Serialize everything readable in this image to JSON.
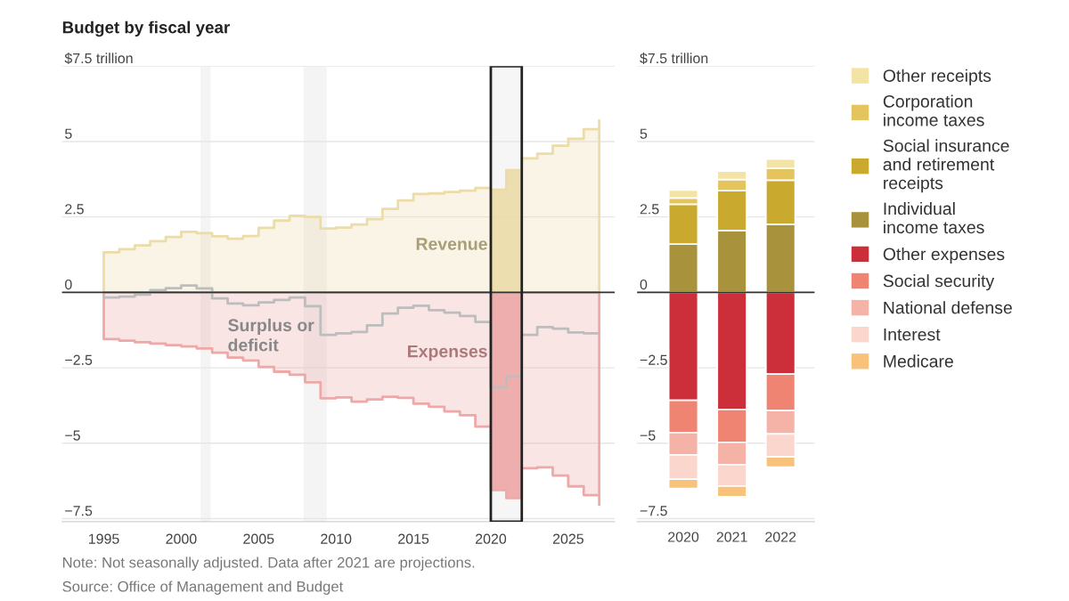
{
  "chart_data": [
    {
      "type": "line",
      "title": "Budget by fiscal year",
      "x": [
        1995,
        1996,
        1997,
        1998,
        1999,
        2000,
        2001,
        2002,
        2003,
        2004,
        2005,
        2006,
        2007,
        2008,
        2009,
        2010,
        2011,
        2012,
        2013,
        2014,
        2015,
        2016,
        2017,
        2018,
        2019,
        2020,
        2021,
        2022,
        2023,
        2024,
        2025,
        2026,
        2027
      ],
      "xlim": [
        1992.3,
        2028
      ],
      "xticks": [
        1995,
        2000,
        2005,
        2010,
        2015,
        2020,
        2025
      ],
      "ylim": [
        -7.6,
        7.5
      ],
      "yticks": [
        {
          "value": 7.5,
          "label": "$7.5 trillion"
        },
        5,
        2.5,
        0,
        {
          "value": -2.5,
          "label": "−2.5"
        },
        {
          "value": -5,
          "label": "−5"
        },
        {
          "value": -7.5,
          "label": "−7.5"
        }
      ],
      "grid": "y",
      "series": [
        {
          "name": "Revenue",
          "type": "area",
          "color": "#ebdca8",
          "values": [
            1.33,
            1.43,
            1.56,
            1.7,
            1.84,
            2.01,
            1.96,
            1.86,
            1.78,
            1.87,
            2.14,
            2.38,
            2.54,
            2.5,
            2.12,
            2.15,
            2.25,
            2.43,
            2.77,
            3.05,
            3.26,
            3.28,
            3.33,
            3.37,
            3.46,
            3.4,
            4.05,
            4.44,
            4.6,
            4.86,
            5.09,
            5.41,
            5.7
          ]
        },
        {
          "name": "Expenses",
          "type": "area",
          "color": "#eea8a8",
          "values": [
            -1.55,
            -1.6,
            -1.65,
            -1.7,
            -1.75,
            -1.79,
            -1.86,
            -2.0,
            -2.16,
            -2.26,
            -2.47,
            -2.63,
            -2.73,
            -2.98,
            -3.51,
            -3.48,
            -3.62,
            -3.55,
            -3.46,
            -3.5,
            -3.69,
            -3.79,
            -3.95,
            -4.07,
            -4.45,
            -6.55,
            -6.82,
            -5.83,
            -5.8,
            -6.07,
            -6.43,
            -6.72,
            -7.04
          ]
        },
        {
          "name": "Surplus or deficit",
          "type": "step",
          "color": "#bdbdbd",
          "values": [
            -0.17,
            -0.14,
            -0.07,
            0.07,
            0.14,
            0.23,
            0.13,
            -0.2,
            -0.37,
            -0.43,
            -0.33,
            -0.25,
            -0.17,
            -0.46,
            -1.41,
            -1.36,
            -1.31,
            -1.09,
            -0.7,
            -0.51,
            -0.44,
            -0.59,
            -0.67,
            -0.78,
            -0.98,
            -3.15,
            -2.78,
            -1.41,
            -1.15,
            -1.2,
            -1.33,
            -1.36,
            -1.36
          ]
        }
      ],
      "bands": [
        {
          "axis": "x",
          "from": 2001.25,
          "to": 2001.9,
          "color": "#f4f4f4"
        },
        {
          "axis": "x",
          "from": 2007.9,
          "to": 2009.4,
          "color": "#f4f4f4"
        },
        {
          "axis": "x",
          "from": 2020,
          "to": 2022,
          "color": "#222222"
        }
      ],
      "ref_lines": [
        {
          "axis": "y",
          "value": 0,
          "color": "#333333"
        }
      ],
      "annotations": [
        "Note: Not seasonally adjusted. Data after 2021 are projections.",
        "Source: Office of Management and Budget"
      ]
    },
    {
      "type": "bar",
      "stacked": true,
      "categories": [
        "2020",
        "2021",
        "2022"
      ],
      "ylim": [
        -7.6,
        7.5
      ],
      "yticks": [
        {
          "value": 7.5,
          "label": "$7.5 trillion"
        },
        5,
        2.5,
        0,
        {
          "value": -2.5,
          "label": "−2.5"
        },
        {
          "value": -5,
          "label": "−5"
        },
        {
          "value": -7.5,
          "label": "−7.5"
        }
      ],
      "grid": "y",
      "legend": "right",
      "series": [
        {
          "name": "Individual income taxes",
          "color": "#a8933c",
          "values": [
            1.6,
            2.05,
            2.26
          ]
        },
        {
          "name": "Social insurance and retirement receipts",
          "color": "#c9a92e",
          "values": [
            1.32,
            1.32,
            1.46
          ]
        },
        {
          "name": "Corporation income taxes",
          "color": "#e3c45e",
          "values": [
            0.21,
            0.37,
            0.39
          ]
        },
        {
          "name": "Other receipts",
          "color": "#f3e4a6",
          "values": [
            0.26,
            0.28,
            0.31
          ]
        },
        {
          "name": "Other expenses",
          "color": "#cc2f3a",
          "values": [
            -3.58,
            -3.88,
            -2.71
          ]
        },
        {
          "name": "Social security",
          "color": "#f08473",
          "values": [
            -1.07,
            -1.09,
            -1.21
          ]
        },
        {
          "name": "National defense",
          "color": "#f5b3a8",
          "values": [
            -0.74,
            -0.74,
            -0.77
          ]
        },
        {
          "name": "Interest",
          "color": "#fad6cc",
          "values": [
            -0.8,
            -0.71,
            -0.76
          ]
        },
        {
          "name": "Medicare",
          "color": "#f9c27a",
          "values": [
            -0.31,
            -0.35,
            -0.34
          ]
        }
      ]
    }
  ]
}
